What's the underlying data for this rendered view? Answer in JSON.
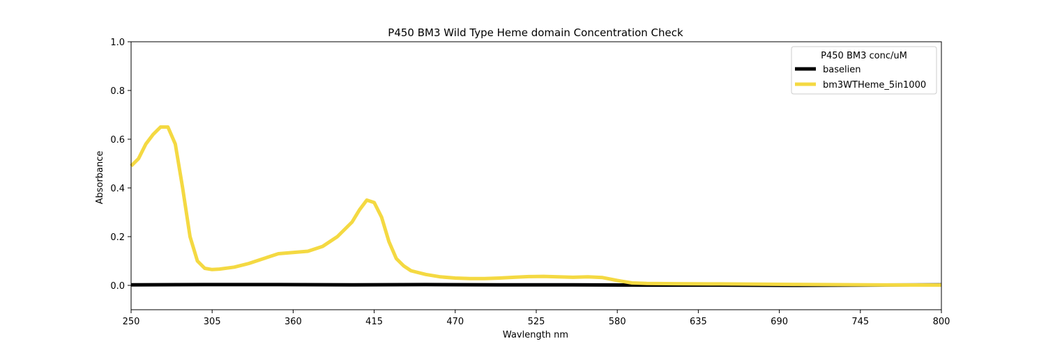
{
  "chart_data": {
    "type": "line",
    "title": "P450 BM3 Wild Type Heme domain Concentration Check",
    "xlabel": "Wavlength nm",
    "ylabel": "Absorbance",
    "xlim": [
      250,
      800
    ],
    "ylim": [
      -0.1,
      1.0
    ],
    "xticks": [
      250,
      305,
      360,
      415,
      470,
      525,
      580,
      635,
      690,
      745,
      800
    ],
    "yticks": [
      0.0,
      0.2,
      0.4,
      0.6,
      0.8,
      1.0
    ],
    "ytick_labels": [
      "0.0",
      "0.2",
      "0.4",
      "0.6",
      "0.8",
      "1.0"
    ],
    "grid": false,
    "legend": {
      "title": "P450 BM3 conc/uM",
      "placement": "top-right"
    },
    "series": [
      {
        "name": "baselien",
        "color": "#000000",
        "x": [
          250,
          300,
          350,
          400,
          450,
          500,
          550,
          600,
          650,
          700,
          750,
          800
        ],
        "y": [
          0.002,
          0.003,
          0.003,
          0.002,
          0.003,
          0.002,
          0.002,
          0.001,
          0.001,
          0.0,
          0.001,
          0.002
        ]
      },
      {
        "name": "bm3WTHeme_5in1000",
        "color": "#f4d942",
        "x": [
          250,
          255,
          260,
          265,
          270,
          275,
          280,
          285,
          290,
          295,
          300,
          305,
          310,
          320,
          330,
          340,
          350,
          360,
          370,
          380,
          390,
          400,
          405,
          410,
          415,
          420,
          425,
          430,
          435,
          440,
          450,
          460,
          470,
          480,
          490,
          500,
          510,
          520,
          530,
          540,
          550,
          560,
          570,
          580,
          590,
          600,
          620,
          650,
          700,
          750,
          800
        ],
        "y": [
          0.49,
          0.52,
          0.58,
          0.62,
          0.65,
          0.65,
          0.58,
          0.4,
          0.2,
          0.1,
          0.07,
          0.065,
          0.067,
          0.075,
          0.09,
          0.11,
          0.13,
          0.135,
          0.14,
          0.16,
          0.2,
          0.26,
          0.31,
          0.35,
          0.34,
          0.28,
          0.18,
          0.11,
          0.08,
          0.06,
          0.045,
          0.035,
          0.03,
          0.028,
          0.028,
          0.03,
          0.033,
          0.036,
          0.037,
          0.035,
          0.033,
          0.035,
          0.032,
          0.02,
          0.01,
          0.008,
          0.007,
          0.006,
          0.004,
          0.002,
          0.001
        ]
      }
    ]
  }
}
